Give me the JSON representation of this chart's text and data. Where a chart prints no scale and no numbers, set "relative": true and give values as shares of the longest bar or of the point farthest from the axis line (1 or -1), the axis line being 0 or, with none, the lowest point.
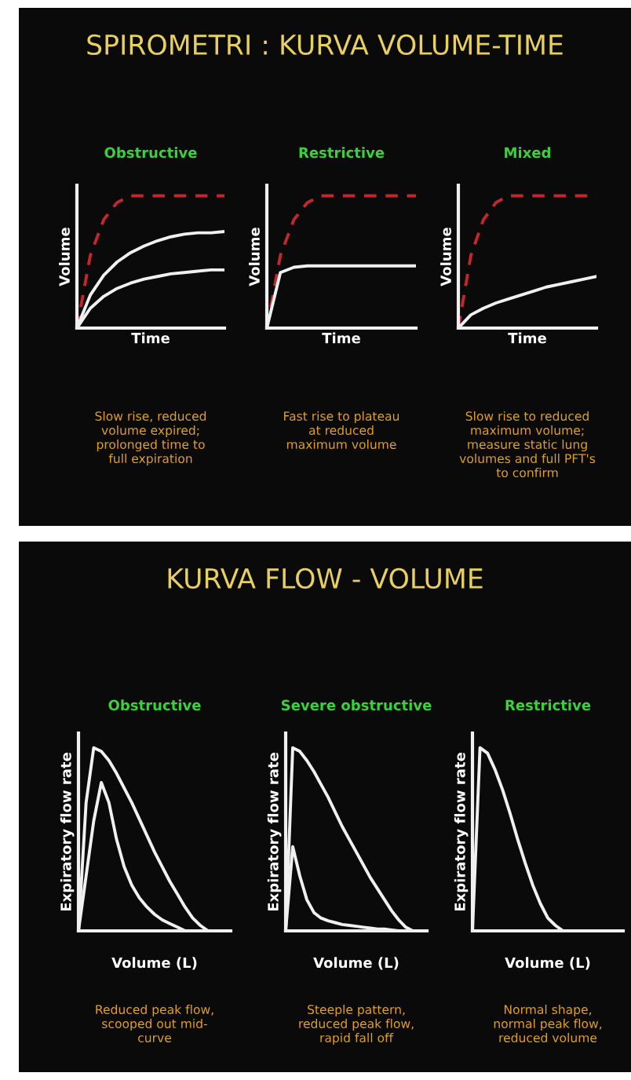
{
  "chart_data": [
    {
      "type": "line",
      "relative": true,
      "subtitle": "SPIROMETRI : KURVA VOLUME-TIME",
      "title": "Obstructive",
      "xlabel": "Time",
      "ylabel": "Volume",
      "categories": [
        null,
        null,
        null,
        null,
        null,
        null,
        null,
        null,
        null,
        null,
        null,
        null
      ],
      "tick_labels": false,
      "grid": false,
      "legend": false,
      "series": [
        {
          "color": "#c0282d",
          "line_style": "dashed",
          "values": [
            0,
            0.55,
            0.82,
            0.95,
            1,
            1,
            1,
            1,
            1,
            1,
            1,
            1
          ]
        },
        {
          "color": "#f0f0f0",
          "line_style": "solid",
          "values": [
            0,
            0.25,
            0.4,
            0.5,
            0.57,
            0.62,
            0.66,
            0.69,
            0.71,
            0.72,
            0.72,
            0.73
          ]
        },
        {
          "color": "#f0f0f0",
          "line_style": "solid",
          "values": [
            0,
            0.15,
            0.24,
            0.3,
            0.34,
            0.37,
            0.39,
            0.41,
            0.42,
            0.43,
            0.44,
            0.44
          ]
        }
      ],
      "annotations": [
        "Slow rise, reduced\nvolume expired;\nprolonged time to\nfull expiration"
      ]
    },
    {
      "type": "line",
      "relative": true,
      "title": "Restrictive",
      "xlabel": "Time",
      "ylabel": "Volume",
      "categories": [
        null,
        null,
        null,
        null,
        null,
        null,
        null,
        null,
        null,
        null,
        null,
        null
      ],
      "tick_labels": false,
      "grid": false,
      "legend": false,
      "series": [
        {
          "color": "#c0282d",
          "line_style": "dashed",
          "values": [
            0,
            0.55,
            0.82,
            0.95,
            1,
            1,
            1,
            1,
            1,
            1,
            1,
            1
          ]
        },
        {
          "color": "#f0f0f0",
          "line_style": "solid",
          "values": [
            0,
            0.42,
            0.46,
            0.47,
            0.47,
            0.47,
            0.47,
            0.47,
            0.47,
            0.47,
            0.47,
            0.47
          ]
        }
      ],
      "annotations": [
        "Fast rise to plateau\nat reduced\nmaximum volume"
      ]
    },
    {
      "type": "line",
      "relative": true,
      "title": "Mixed",
      "xlabel": "Time",
      "ylabel": "Volume",
      "categories": [
        null,
        null,
        null,
        null,
        null,
        null,
        null,
        null,
        null,
        null,
        null,
        null
      ],
      "tick_labels": false,
      "grid": false,
      "legend": false,
      "series": [
        {
          "color": "#c0282d",
          "line_style": "dashed",
          "values": [
            0,
            0.55,
            0.82,
            0.95,
            1,
            1,
            1,
            1,
            1,
            1,
            1,
            1
          ]
        },
        {
          "color": "#f0f0f0",
          "line_style": "solid",
          "values": [
            0,
            0.1,
            0.15,
            0.19,
            0.22,
            0.25,
            0.28,
            0.31,
            0.33,
            0.35,
            0.37,
            0.39
          ]
        }
      ],
      "annotations": [
        "Slow rise to reduced\nmaximum volume;\nmeasure static lung\nvolumes and full PFT's\nto confirm"
      ]
    },
    {
      "type": "line",
      "relative": true,
      "subtitle": "KURVA FLOW - VOLUME",
      "title": "Obstructive",
      "xlabel": "Volume (L)",
      "ylabel": "Expiratory flow rate",
      "categories": [
        null,
        null,
        null,
        null,
        null,
        null,
        null,
        null,
        null,
        null,
        null,
        null,
        null,
        null,
        null,
        null,
        null,
        null,
        null,
        null,
        null
      ],
      "tick_labels": false,
      "grid": false,
      "legend": false,
      "series": [
        {
          "color": "#f0f0f0",
          "line_style": "solid",
          "values": [
            0,
            0.7,
            1.0,
            0.98,
            0.93,
            0.86,
            0.78,
            0.7,
            0.61,
            0.52,
            0.43,
            0.35,
            0.27,
            0.2,
            0.13,
            0.07,
            0.03,
            0,
            null,
            null,
            null
          ]
        },
        {
          "color": "#f0f0f0",
          "line_style": "solid",
          "values": [
            0,
            0.3,
            0.6,
            0.81,
            0.7,
            0.5,
            0.35,
            0.25,
            0.18,
            0.13,
            0.09,
            0.06,
            0.04,
            0.02,
            0,
            null,
            null,
            null,
            null,
            null,
            null
          ]
        }
      ],
      "annotations": [
        "Reduced peak flow,\nscooped out mid-\ncurve"
      ]
    },
    {
      "type": "line",
      "relative": true,
      "title": "Severe obstructive",
      "xlabel": "Volume (L)",
      "ylabel": "Expiratory flow rate",
      "categories": [
        null,
        null,
        null,
        null,
        null,
        null,
        null,
        null,
        null,
        null,
        null,
        null,
        null,
        null,
        null,
        null,
        null,
        null,
        null,
        null,
        null
      ],
      "tick_labels": false,
      "grid": false,
      "legend": false,
      "series": [
        {
          "color": "#f0f0f0",
          "line_style": "solid",
          "values": [
            0,
            1.0,
            0.98,
            0.93,
            0.87,
            0.8,
            0.73,
            0.65,
            0.57,
            0.5,
            0.43,
            0.36,
            0.29,
            0.23,
            0.17,
            0.11,
            0.06,
            0.02,
            0,
            null,
            null
          ]
        },
        {
          "color": "#f0f0f0",
          "line_style": "solid",
          "values": [
            0,
            0.46,
            0.3,
            0.17,
            0.1,
            0.07,
            0.055,
            0.045,
            0.035,
            0.03,
            0.025,
            0.02,
            0.015,
            0.01,
            0.01,
            0.005,
            0,
            null,
            null,
            null,
            null
          ]
        }
      ],
      "annotations": [
        "Steeple pattern,\nreduced peak flow,\nrapid fall off"
      ]
    },
    {
      "type": "line",
      "relative": true,
      "title": "Restrictive",
      "xlabel": "Volume (L)",
      "ylabel": "Expiratory flow rate",
      "categories": [
        null,
        null,
        null,
        null,
        null,
        null,
        null,
        null,
        null,
        null,
        null,
        null,
        null,
        null,
        null,
        null,
        null,
        null,
        null,
        null,
        null
      ],
      "tick_labels": false,
      "grid": false,
      "legend": false,
      "series": [
        {
          "color": "#f0f0f0",
          "line_style": "solid",
          "values": [
            0,
            1.0,
            0.97,
            0.88,
            0.77,
            0.64,
            0.5,
            0.37,
            0.25,
            0.15,
            0.07,
            0.03,
            0,
            null,
            null,
            null,
            null,
            null,
            null,
            null,
            null
          ]
        }
      ],
      "annotations": [
        "Normal shape,\nnormal peak flow,\nreduced volume"
      ]
    }
  ]
}
